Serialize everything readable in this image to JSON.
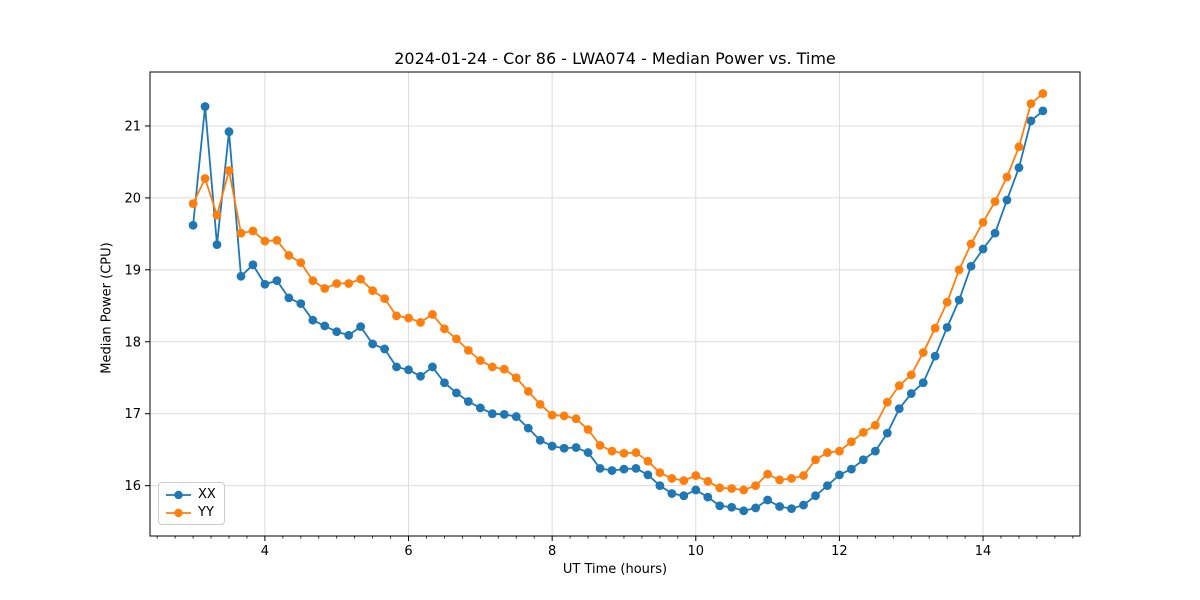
{
  "chart_data": {
    "type": "line",
    "title": "2024-01-24 - Cor 86 - LWA074 - Median Power vs. Time",
    "xlabel": "UT Time (hours)",
    "ylabel": "Median Power (CPU)",
    "xlim": [
      2.4,
      15.35
    ],
    "ylim": [
      15.3,
      21.75
    ],
    "xticks": [
      4,
      6,
      8,
      10,
      12,
      14
    ],
    "xtick_labels": [
      "4",
      "6",
      "8",
      "10",
      "12",
      "14"
    ],
    "yticks": [
      16,
      17,
      18,
      19,
      20,
      21
    ],
    "ytick_labels": [
      "16",
      "17",
      "18",
      "19",
      "20",
      "21"
    ],
    "x_minor_tick_step": 0.25,
    "grid": true,
    "grid_color": "#dcdcdc",
    "axes_edge_color": "#000000",
    "legend": {
      "position": "lower-left",
      "entries": [
        "XX",
        "YY"
      ]
    },
    "x": [
      3.0,
      3.167,
      3.333,
      3.5,
      3.667,
      3.833,
      4.0,
      4.167,
      4.333,
      4.5,
      4.667,
      4.833,
      5.0,
      5.167,
      5.333,
      5.5,
      5.667,
      5.833,
      6.0,
      6.167,
      6.333,
      6.5,
      6.667,
      6.833,
      7.0,
      7.167,
      7.333,
      7.5,
      7.667,
      7.833,
      8.0,
      8.167,
      8.333,
      8.5,
      8.667,
      8.833,
      9.0,
      9.167,
      9.333,
      9.5,
      9.667,
      9.833,
      10.0,
      10.167,
      10.333,
      10.5,
      10.667,
      10.833,
      11.0,
      11.167,
      11.333,
      11.5,
      11.667,
      11.833,
      12.0,
      12.167,
      12.333,
      12.5,
      12.667,
      12.833,
      13.0,
      13.167,
      13.333,
      13.5,
      13.667,
      13.833,
      14.0,
      14.167,
      14.333,
      14.5,
      14.667,
      14.833
    ],
    "series": [
      {
        "name": "XX",
        "color": "#1f77b4",
        "marker": "circle",
        "values": [
          19.62,
          21.27,
          19.35,
          20.92,
          18.91,
          19.07,
          18.8,
          18.85,
          18.61,
          18.53,
          18.3,
          18.22,
          18.14,
          18.09,
          18.21,
          17.97,
          17.9,
          17.65,
          17.61,
          17.52,
          17.65,
          17.43,
          17.29,
          17.17,
          17.08,
          17.0,
          16.99,
          16.96,
          16.8,
          16.63,
          16.55,
          16.52,
          16.53,
          16.46,
          16.24,
          16.21,
          16.23,
          16.24,
          16.15,
          16.0,
          15.89,
          15.86,
          15.94,
          15.84,
          15.72,
          15.7,
          15.65,
          15.69,
          15.8,
          15.71,
          15.68,
          15.73,
          15.86,
          16.0,
          16.15,
          16.23,
          16.36,
          16.48,
          16.73,
          17.07,
          17.28,
          17.43,
          17.8,
          18.2,
          18.58,
          19.05,
          19.29,
          19.51,
          19.97,
          20.42,
          21.07,
          21.21
        ]
      },
      {
        "name": "YY",
        "color": "#ff7f0e",
        "marker": "circle",
        "values": [
          19.92,
          20.27,
          19.76,
          20.38,
          19.51,
          19.54,
          19.4,
          19.41,
          19.2,
          19.1,
          18.85,
          18.74,
          18.81,
          18.81,
          18.87,
          18.71,
          18.6,
          18.36,
          18.33,
          18.27,
          18.38,
          18.18,
          18.04,
          17.88,
          17.74,
          17.65,
          17.62,
          17.5,
          17.31,
          17.13,
          16.98,
          16.97,
          16.93,
          16.78,
          16.56,
          16.48,
          16.45,
          16.46,
          16.34,
          16.18,
          16.1,
          16.07,
          16.14,
          16.06,
          15.97,
          15.96,
          15.94,
          16.0,
          16.16,
          16.08,
          16.1,
          16.14,
          16.36,
          16.46,
          16.48,
          16.61,
          16.74,
          16.84,
          17.16,
          17.39,
          17.54,
          17.85,
          18.19,
          18.55,
          19.0,
          19.36,
          19.66,
          19.95,
          20.29,
          20.71,
          21.31,
          21.45
        ]
      }
    ]
  }
}
